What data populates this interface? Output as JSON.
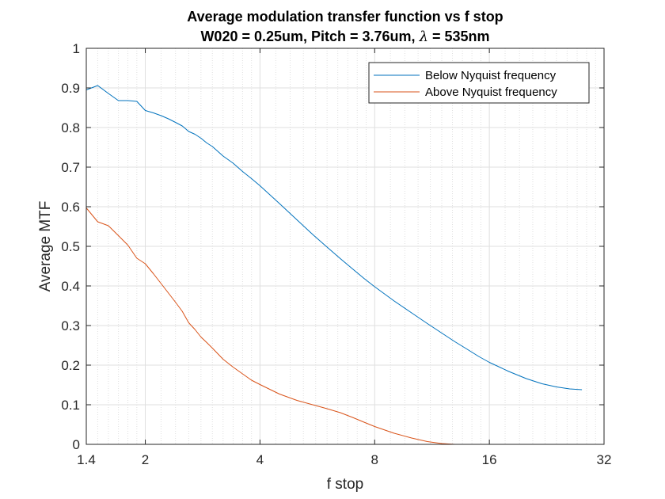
{
  "chart_data": {
    "type": "line",
    "title": "Average modulation transfer function vs f stop",
    "subtitle_prefix": "W020 = 0.25um, Pitch = 3.76um, ",
    "subtitle_lambda": "λ",
    "subtitle_suffix": " = 535nm",
    "xlabel": "f stop",
    "ylabel": "Average MTF",
    "xscale": "log2",
    "xlim": [
      1.4,
      32
    ],
    "ylim": [
      0,
      1
    ],
    "xticks": [
      1.4,
      2,
      4,
      8,
      16,
      32
    ],
    "xtick_labels": [
      "1.4",
      "2",
      "4",
      "8",
      "16",
      "32"
    ],
    "yticks": [
      0,
      0.1,
      0.2,
      0.3,
      0.4,
      0.5,
      0.6,
      0.7,
      0.8,
      0.9,
      1
    ],
    "ytick_labels": [
      "0",
      "0.1",
      "0.2",
      "0.3",
      "0.4",
      "0.5",
      "0.6",
      "0.7",
      "0.8",
      "0.9",
      "1"
    ],
    "grid": true,
    "minor_grid_x": true,
    "legend_position": "top-right",
    "colors": {
      "below": "#0072BD",
      "above": "#D95319",
      "grid": "#dfdfdf",
      "axis": "#262626"
    },
    "series": [
      {
        "name": "Below Nyquist frequency",
        "color": "#0072BD",
        "x": [
          1.4,
          1.5,
          1.6,
          1.7,
          1.8,
          1.9,
          2.0,
          2.1,
          2.2,
          2.3,
          2.4,
          2.5,
          2.6,
          2.7,
          2.8,
          2.9,
          3.0,
          3.2,
          3.4,
          3.6,
          3.8,
          4.0,
          4.5,
          5.0,
          5.5,
          6.0,
          6.5,
          7.0,
          7.5,
          8.0,
          9.0,
          10.0,
          11.0,
          12.0,
          13.0,
          14.0,
          15.0,
          16.0,
          18.0,
          20.0,
          22.0,
          24.0,
          26.0,
          28.0
        ],
        "y": [
          0.895,
          0.906,
          0.886,
          0.868,
          0.868,
          0.866,
          0.843,
          0.837,
          0.83,
          0.822,
          0.813,
          0.804,
          0.79,
          0.783,
          0.773,
          0.761,
          0.752,
          0.728,
          0.71,
          0.689,
          0.671,
          0.653,
          0.608,
          0.567,
          0.53,
          0.498,
          0.469,
          0.443,
          0.419,
          0.398,
          0.362,
          0.332,
          0.305,
          0.281,
          0.259,
          0.24,
          0.222,
          0.207,
          0.184,
          0.166,
          0.153,
          0.145,
          0.14,
          0.138
        ]
      },
      {
        "name": "Above Nyquist frequency",
        "color": "#D95319",
        "x": [
          1.4,
          1.5,
          1.6,
          1.7,
          1.8,
          1.9,
          2.0,
          2.1,
          2.2,
          2.3,
          2.4,
          2.5,
          2.6,
          2.7,
          2.8,
          2.9,
          3.0,
          3.2,
          3.4,
          3.6,
          3.8,
          4.0,
          4.5,
          5.0,
          5.5,
          6.0,
          6.5,
          7.0,
          7.5,
          8.0,
          9.0,
          10.0,
          11.0,
          12.0,
          13.0,
          14.0,
          15.0,
          16.0,
          18.0,
          20.0,
          22.0,
          24.0,
          26.0,
          28.0
        ],
        "y": [
          0.597,
          0.562,
          0.552,
          0.527,
          0.503,
          0.47,
          0.456,
          0.431,
          0.406,
          0.382,
          0.359,
          0.336,
          0.307,
          0.29,
          0.271,
          0.257,
          0.243,
          0.215,
          0.195,
          0.178,
          0.162,
          0.151,
          0.127,
          0.111,
          0.1,
          0.09,
          0.08,
          0.068,
          0.056,
          0.045,
          0.028,
          0.016,
          0.007,
          0.002,
          0.0,
          0.0,
          0.0,
          0.0,
          0.0,
          0.0,
          0.0,
          0.0,
          0.0,
          0.0
        ]
      }
    ]
  }
}
